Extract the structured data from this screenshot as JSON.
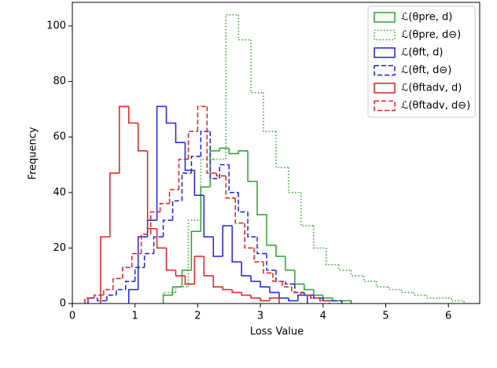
{
  "chart_data": {
    "type": "histogram",
    "x_label": "Loss Value",
    "y_label": "Frequency",
    "xlim": [
      0,
      6.5
    ],
    "ylim": [
      0,
      108.5
    ],
    "xticks": [
      0,
      1,
      2,
      3,
      4,
      5,
      6
    ],
    "yticks": [
      0,
      20,
      40,
      60,
      80,
      100
    ],
    "legend": "upper right",
    "series": [
      {
        "name": "ℒ(θpre, d)",
        "color": "#2ca02c",
        "style": "solid",
        "bins": [
          1.45,
          1.6,
          1.75,
          1.9,
          2.05,
          2.2,
          2.35,
          2.5,
          2.65,
          2.8,
          2.95,
          3.1,
          3.25,
          3.4,
          3.55,
          3.7,
          3.85,
          4.0,
          4.15,
          4.3,
          4.45
        ],
        "values": [
          3,
          6,
          12,
          26,
          42,
          55,
          56,
          54,
          55,
          44,
          32,
          21,
          17,
          12,
          7,
          5,
          3,
          2,
          1,
          1
        ]
      },
      {
        "name": "ℒ(θpre, d⊖)",
        "color": "#2ca02c",
        "style": "dotted",
        "bins": [
          1.45,
          1.65,
          1.85,
          2.05,
          2.25,
          2.45,
          2.65,
          2.85,
          3.05,
          3.25,
          3.45,
          3.65,
          3.85,
          4.05,
          4.25,
          4.45,
          4.65,
          4.85,
          5.05,
          5.25,
          5.45,
          5.65,
          5.85,
          6.05,
          6.25
        ],
        "values": [
          4,
          6,
          30,
          52,
          52,
          104,
          95,
          76,
          62,
          49,
          40,
          28,
          20,
          14,
          12,
          10,
          8,
          6,
          5,
          4,
          3,
          2,
          2,
          1
        ]
      },
      {
        "name": "ℒ(θft, d)",
        "color": "#1f1fe0",
        "style": "solid",
        "bins": [
          0.9,
          1.05,
          1.2,
          1.35,
          1.5,
          1.65,
          1.8,
          1.95,
          2.1,
          2.25,
          2.4,
          2.55,
          2.7,
          2.85,
          3.0,
          3.15,
          3.3,
          3.45,
          3.6,
          3.75
        ],
        "values": [
          5,
          24,
          30,
          71,
          65,
          58,
          48,
          39,
          24,
          17,
          28,
          15,
          10,
          8,
          6,
          4,
          2,
          1,
          3
        ]
      },
      {
        "name": "ℒ(θft, d⊖)",
        "color": "#1f1fe0",
        "style": "dashed",
        "bins": [
          0.25,
          0.4,
          0.55,
          0.7,
          0.85,
          1.0,
          1.15,
          1.3,
          1.45,
          1.6,
          1.75,
          1.9,
          2.05,
          2.2,
          2.35,
          2.5,
          2.65,
          2.8,
          2.95,
          3.1,
          3.25,
          3.4,
          3.55,
          3.7,
          3.85,
          4.0,
          4.15,
          4.3
        ],
        "values": [
          2,
          1,
          3,
          5,
          8,
          13,
          18,
          24,
          30,
          37,
          47,
          53,
          62,
          45,
          50,
          40,
          33,
          24,
          18,
          12,
          8,
          7,
          4,
          3,
          2,
          1,
          1
        ]
      },
      {
        "name": "ℒ(θftadv, d)",
        "color": "#e01f1f",
        "style": "solid",
        "bins": [
          0.45,
          0.6,
          0.75,
          0.9,
          1.05,
          1.2,
          1.35,
          1.5,
          1.65,
          1.8,
          1.95,
          2.1,
          2.25,
          2.4,
          2.55,
          2.7,
          2.85,
          3.0,
          3.15,
          3.3
        ],
        "values": [
          24,
          47,
          71,
          65,
          55,
          27,
          20,
          12,
          10,
          7,
          17,
          10,
          6,
          5,
          4,
          3,
          2,
          1,
          2
        ]
      },
      {
        "name": "ℒ(θftadv, d⊖)",
        "color": "#e01f1f",
        "style": "dashed",
        "bins": [
          0.2,
          0.35,
          0.5,
          0.65,
          0.8,
          0.95,
          1.1,
          1.25,
          1.4,
          1.55,
          1.7,
          1.85,
          2.0,
          2.15,
          2.3,
          2.45,
          2.6,
          2.75,
          2.9,
          3.05,
          3.2,
          3.35,
          3.5,
          3.65,
          3.8,
          3.95,
          4.1
        ],
        "values": [
          2,
          3,
          5,
          9,
          13,
          18,
          25,
          33,
          36,
          41,
          52,
          62,
          71,
          47,
          46,
          38,
          29,
          20,
          15,
          11,
          8,
          6,
          4,
          3,
          2,
          1
        ]
      }
    ]
  }
}
